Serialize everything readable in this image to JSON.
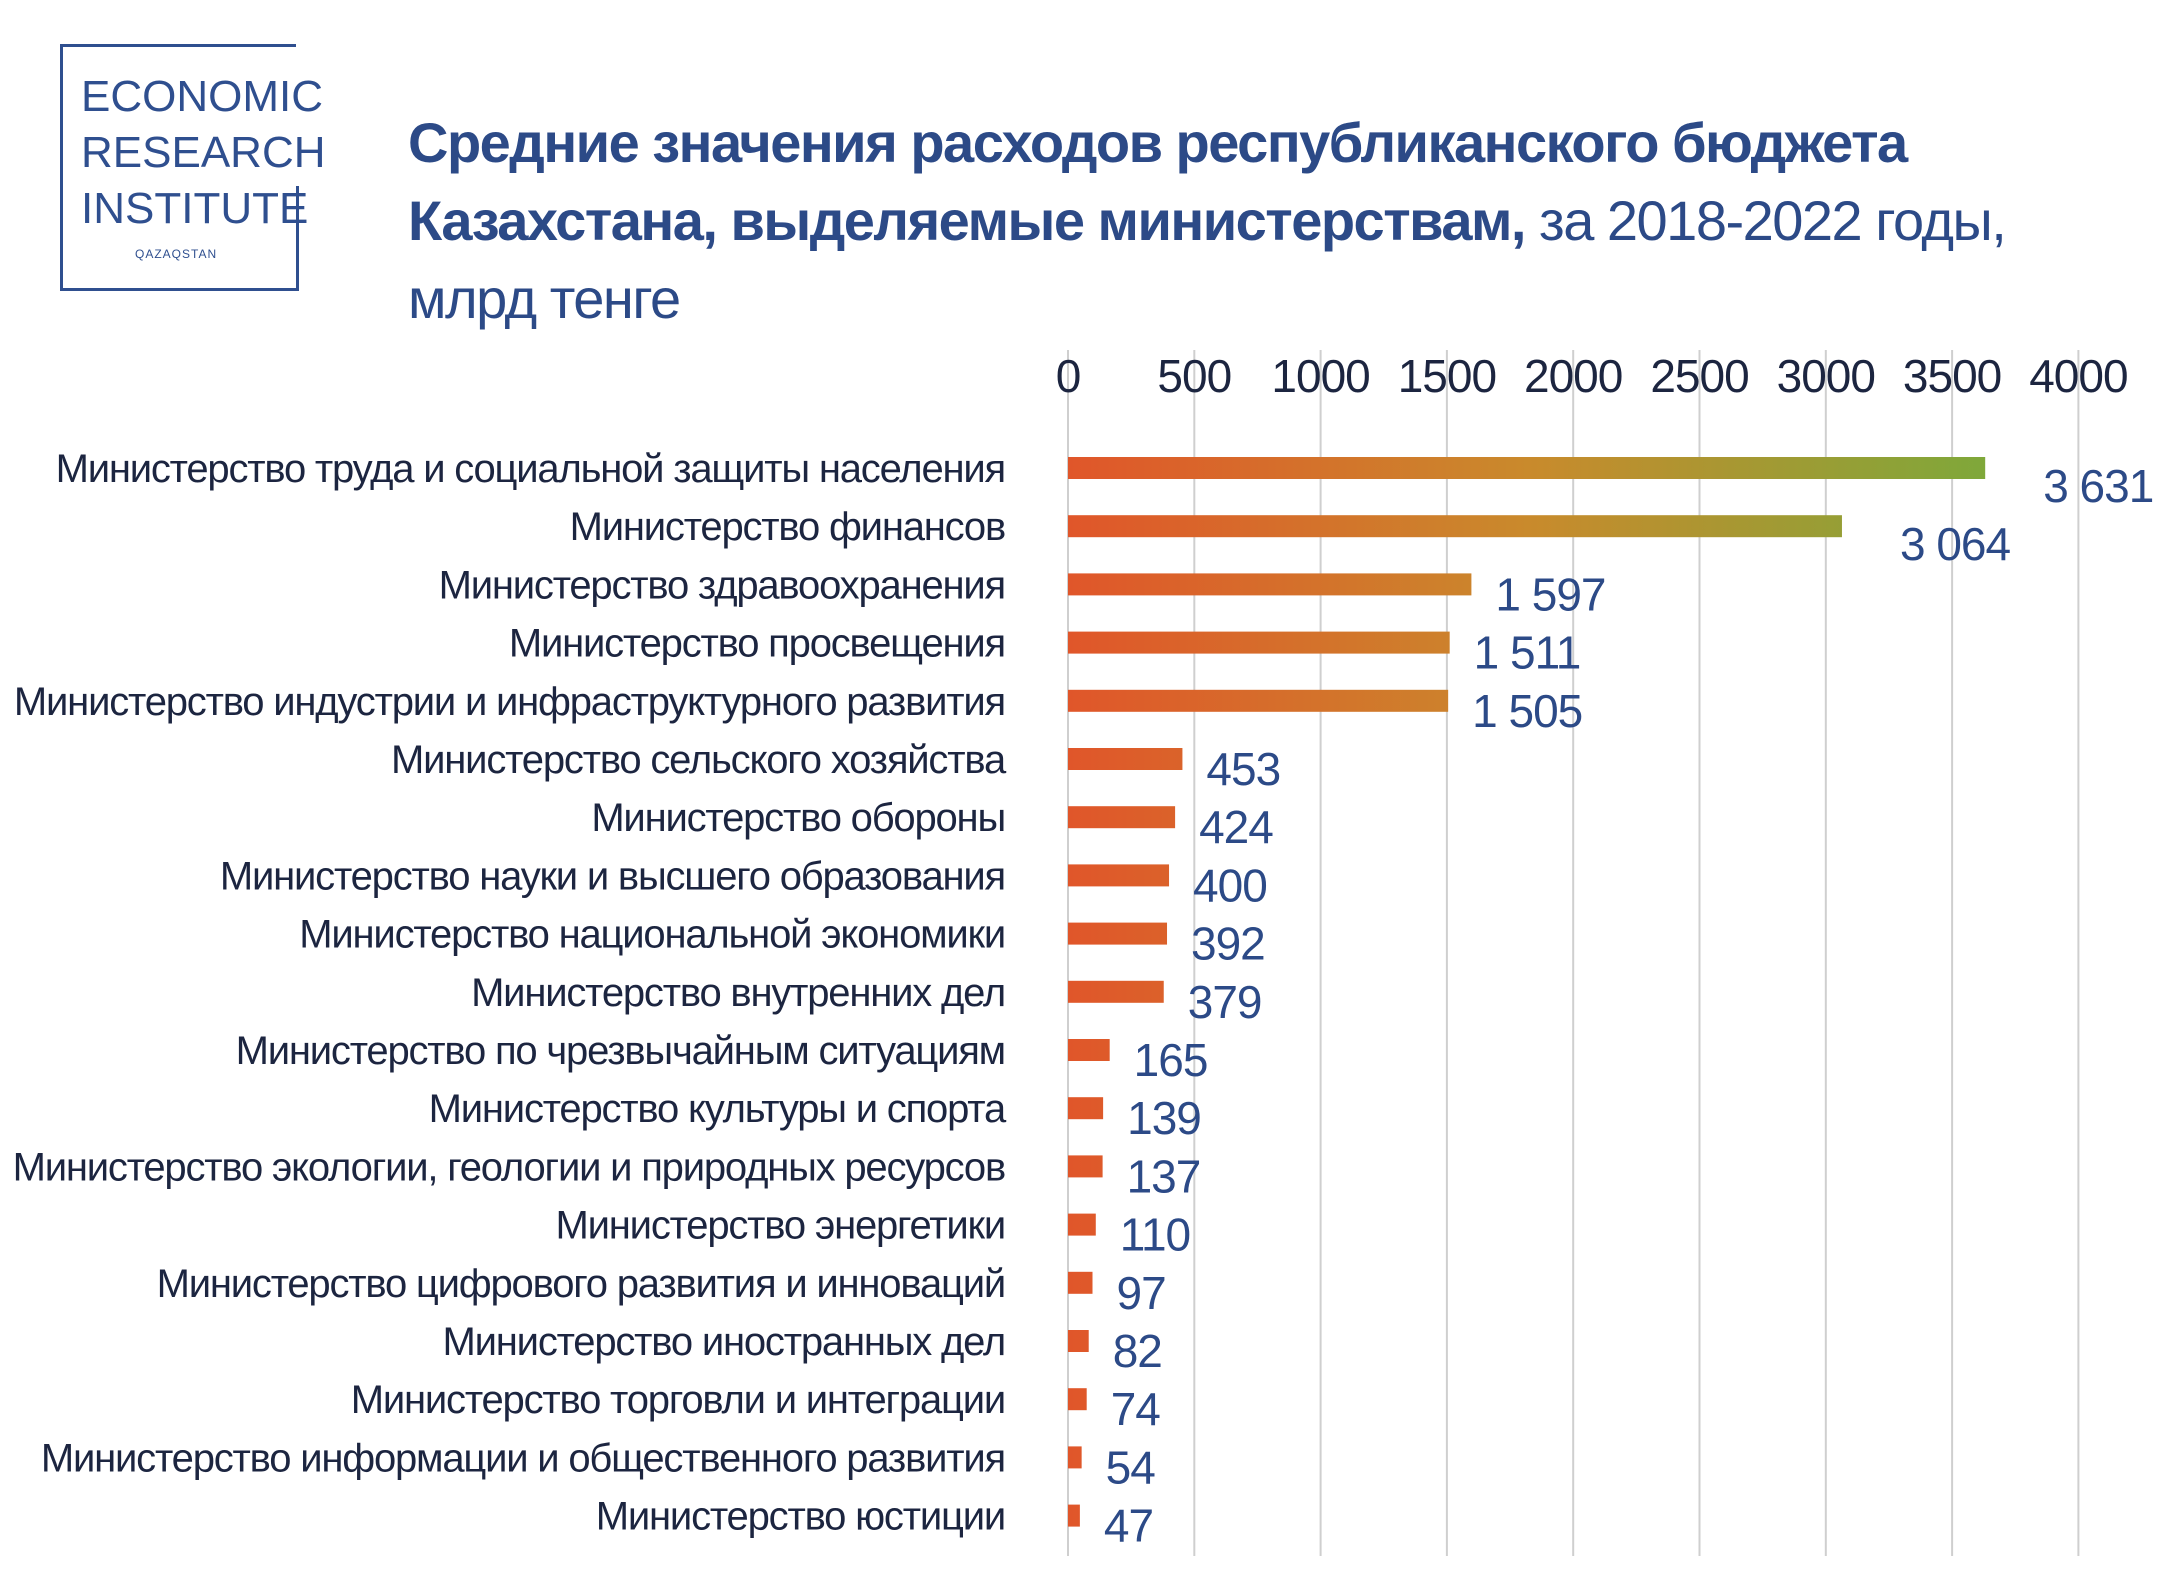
{
  "logo": {
    "line1": "ECONOMIC",
    "line2": "RESEARCH",
    "line3": "INSTITUTE",
    "sub": "QAZAQSTAN"
  },
  "title": {
    "bold": "Средние значения расходов республиканского бюджета Казахстана, выделяемые министерствам,",
    "regular": " за 2018-2022 годы, млрд тенге"
  },
  "chart_data": {
    "type": "bar",
    "orientation": "horizontal",
    "categories": [
      "Министерство труда и социальной защиты населения",
      "Министерство финансов",
      "Министерство здравоохранения",
      "Министерство просвещения",
      "Министерство индустрии и инфраструктурного развития",
      "Министерство сельского хозяйства",
      "Министерство обороны",
      "Министерство науки и высшего образования",
      "Министерство национальной экономики",
      "Министерство внутренних дел",
      "Министерство по чрезвычайным ситуациям",
      "Министерство культуры и спорта",
      "Министерство экологии, геологии и природных ресурсов",
      "Министерство энергетики",
      "Министерство цифрового развития и инноваций",
      "Министерство иностранных дел",
      "Министерство торговли и интеграции",
      "Министерство информации и общественного развития",
      "Министерство юстиции"
    ],
    "values": [
      3631,
      3064,
      1597,
      1511,
      1505,
      453,
      424,
      400,
      392,
      379,
      165,
      139,
      137,
      110,
      97,
      82,
      74,
      54,
      47
    ],
    "value_labels": [
      "3 631",
      "3 064",
      "1 597",
      "1 511",
      "1 505",
      "453",
      "424",
      "400",
      "392",
      "379",
      "165",
      "139",
      "137",
      "110",
      "97",
      "82",
      "74",
      "54",
      "47"
    ],
    "xlim": [
      0,
      4000
    ],
    "x_ticks": [
      0,
      500,
      1000,
      1500,
      2000,
      2500,
      3000,
      3500,
      4000
    ],
    "x_axis_position": "top",
    "grid": true,
    "colors": {
      "bar_start": "#e0562a",
      "bar_mid": "#c98a2c",
      "bar_end": "#7ea83a",
      "value_label": "#2c4a87",
      "grid": "#cfcfcf",
      "category_text": "#1c2540"
    }
  }
}
